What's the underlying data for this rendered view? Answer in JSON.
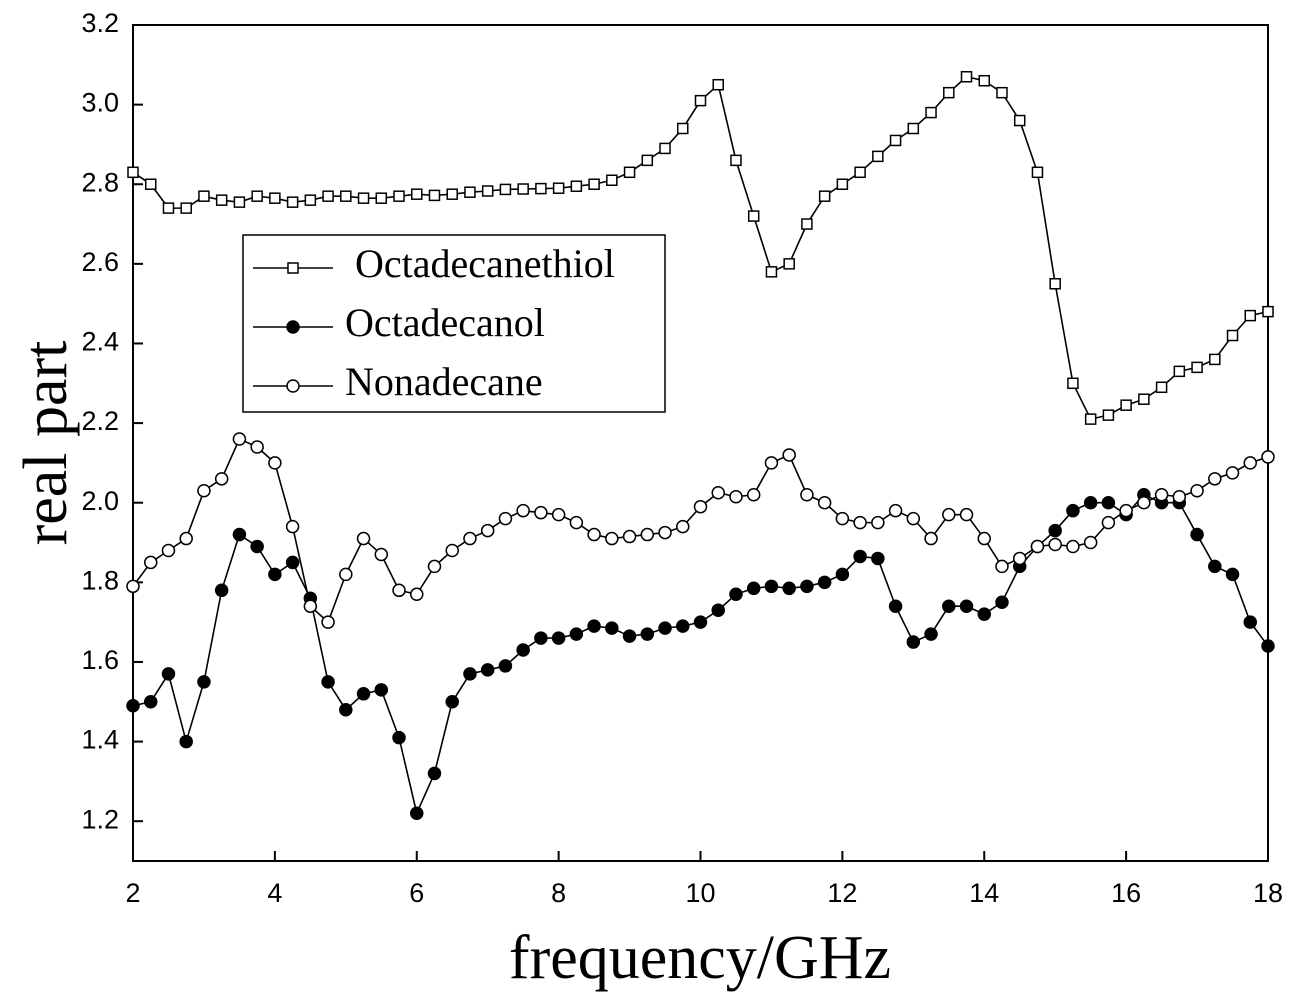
{
  "chart_data": {
    "type": "line",
    "x_label": "frequency/GHz",
    "y_label": "real part",
    "x": [
      2,
      2.25,
      2.5,
      2.75,
      3,
      3.25,
      3.5,
      3.75,
      4,
      4.25,
      4.5,
      4.75,
      5,
      5.25,
      5.5,
      5.75,
      6,
      6.25,
      6.5,
      6.75,
      7,
      7.25,
      7.5,
      7.75,
      8,
      8.25,
      8.5,
      8.75,
      9,
      9.25,
      9.5,
      9.75,
      10,
      10.25,
      10.5,
      10.75,
      11,
      11.25,
      11.5,
      11.75,
      12,
      12.25,
      12.5,
      12.75,
      13,
      13.25,
      13.5,
      13.75,
      14,
      14.25,
      14.5,
      14.75,
      15,
      15.25,
      15.5,
      15.75,
      16,
      16.25,
      16.5,
      16.75,
      17,
      17.25,
      17.5,
      17.75,
      18
    ],
    "series": [
      {
        "name": "Octadecanethiol",
        "color": "#000000",
        "marker": "square",
        "values": [
          2.83,
          2.8,
          2.74,
          2.74,
          2.77,
          2.76,
          2.755,
          2.77,
          2.765,
          2.755,
          2.76,
          2.77,
          2.77,
          2.765,
          2.765,
          2.77,
          2.775,
          2.772,
          2.775,
          2.78,
          2.783,
          2.787,
          2.788,
          2.789,
          2.79,
          2.795,
          2.8,
          2.81,
          2.83,
          2.86,
          2.89,
          2.94,
          3.01,
          3.05,
          2.86,
          2.72,
          2.58,
          2.6,
          2.7,
          2.77,
          2.8,
          2.83,
          2.87,
          2.91,
          2.94,
          2.98,
          3.03,
          3.07,
          3.06,
          3.03,
          2.96,
          2.83,
          2.55,
          2.3,
          2.21,
          2.22,
          2.245,
          2.26,
          2.29,
          2.33,
          2.34,
          2.36,
          2.42,
          2.47,
          2.48
        ]
      },
      {
        "name": "Octadecanol",
        "color": "#000000",
        "marker": "filled-circle",
        "values": [
          1.49,
          1.5,
          1.57,
          1.4,
          1.55,
          1.78,
          1.92,
          1.89,
          1.82,
          1.85,
          1.76,
          1.55,
          1.48,
          1.52,
          1.53,
          1.41,
          1.22,
          1.32,
          1.5,
          1.57,
          1.58,
          1.59,
          1.63,
          1.66,
          1.66,
          1.67,
          1.69,
          1.685,
          1.665,
          1.67,
          1.685,
          1.69,
          1.7,
          1.73,
          1.77,
          1.785,
          1.79,
          1.785,
          1.79,
          1.8,
          1.82,
          1.865,
          1.86,
          1.74,
          1.65,
          1.67,
          1.74,
          1.74,
          1.72,
          1.75,
          1.84,
          1.89,
          1.93,
          1.98,
          2,
          2,
          1.97,
          2.02,
          2,
          2,
          1.92,
          1.84,
          1.82,
          1.7,
          1.64
        ]
      },
      {
        "name": "Nonadecane",
        "color": "#000000",
        "marker": "open-circle",
        "values": [
          1.79,
          1.85,
          1.88,
          1.91,
          2.03,
          2.06,
          2.16,
          2.14,
          2.1,
          1.94,
          1.74,
          1.7,
          1.82,
          1.91,
          1.87,
          1.78,
          1.77,
          1.84,
          1.88,
          1.91,
          1.93,
          1.96,
          1.98,
          1.975,
          1.97,
          1.95,
          1.92,
          1.91,
          1.915,
          1.92,
          1.925,
          1.94,
          1.99,
          2.025,
          2.015,
          2.02,
          2.1,
          2.12,
          2.02,
          2,
          1.96,
          1.95,
          1.95,
          1.98,
          1.96,
          1.91,
          1.97,
          1.97,
          1.91,
          1.84,
          1.86,
          1.89,
          1.895,
          1.89,
          1.9,
          1.95,
          1.98,
          2,
          2.02,
          2.015,
          2.03,
          2.06,
          2.075,
          2.1,
          2.115
        ]
      }
    ],
    "xlim": [
      2,
      18
    ],
    "xticks": [
      2,
      4,
      6,
      8,
      10,
      12,
      14,
      16,
      18
    ],
    "ylim": [
      1.1,
      3.2
    ],
    "yticks": [
      1.2,
      1.4,
      1.6,
      1.8,
      {
        "value": 2,
        "label": "2.0"
      },
      2.2,
      2.4,
      2.6,
      2.8,
      {
        "value": 3,
        "label": "3.0"
      },
      3.2
    ],
    "legend": "upper left"
  }
}
